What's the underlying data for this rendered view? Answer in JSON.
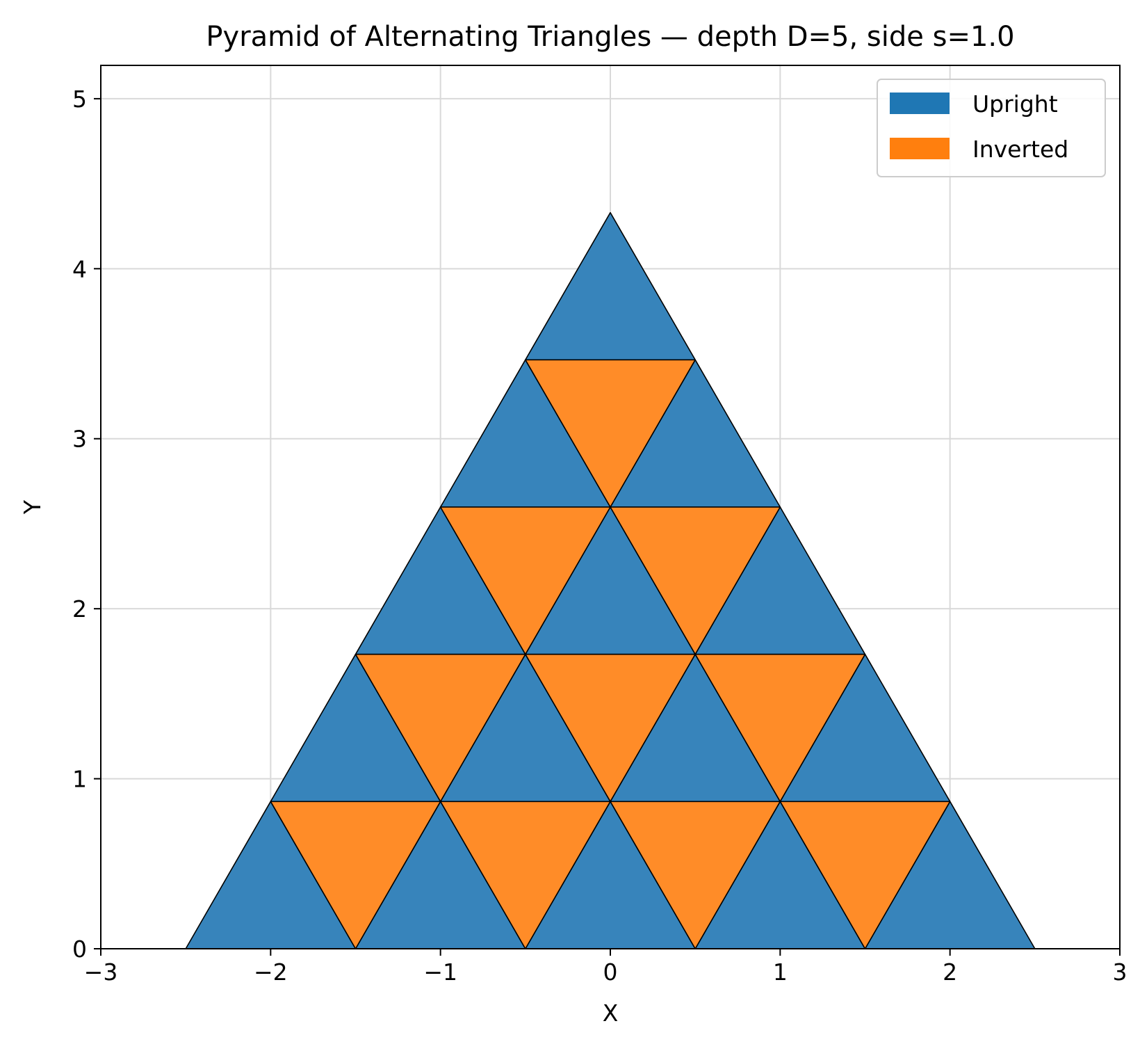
{
  "chart_data": {
    "type": "polygon",
    "title": "Pyramid of Alternating Triangles — depth D=5, side s=1.0",
    "xlabel": "X",
    "ylabel": "Y",
    "xlim": [
      -3,
      3
    ],
    "ylim": [
      0,
      5.196
    ],
    "xticks": [
      -3,
      -2,
      -1,
      0,
      1,
      2,
      3
    ],
    "yticks": [
      0,
      1,
      2,
      3,
      4,
      5
    ],
    "grid": true,
    "legend_position": "top-right",
    "depth": 5,
    "side": 1.0,
    "series": [
      {
        "name": "Upright",
        "color": "#1f77b4",
        "fill_color": "#3784bb",
        "triangles": [
          {
            "row": 0,
            "x0": -2.5,
            "y0": 0,
            "x1": -1.5,
            "y1": 0,
            "x2": -2.0,
            "y2": 0.866
          },
          {
            "row": 0,
            "x0": -1.5,
            "y0": 0,
            "x1": -0.5,
            "y1": 0,
            "x2": -1.0,
            "y2": 0.866
          },
          {
            "row": 0,
            "x0": -0.5,
            "y0": 0,
            "x1": 0.5,
            "y1": 0,
            "x2": 0.0,
            "y2": 0.866
          },
          {
            "row": 0,
            "x0": 0.5,
            "y0": 0,
            "x1": 1.5,
            "y1": 0,
            "x2": 1.0,
            "y2": 0.866
          },
          {
            "row": 0,
            "x0": 1.5,
            "y0": 0,
            "x1": 2.5,
            "y1": 0,
            "x2": 2.0,
            "y2": 0.866
          },
          {
            "row": 1,
            "x0": -2.0,
            "y0": 0.866,
            "x1": -1.0,
            "y1": 0.866,
            "x2": -1.5,
            "y2": 1.732
          },
          {
            "row": 1,
            "x0": -1.0,
            "y0": 0.866,
            "x1": 0.0,
            "y1": 0.866,
            "x2": -0.5,
            "y2": 1.732
          },
          {
            "row": 1,
            "x0": 0.0,
            "y0": 0.866,
            "x1": 1.0,
            "y1": 0.866,
            "x2": 0.5,
            "y2": 1.732
          },
          {
            "row": 1,
            "x0": 1.0,
            "y0": 0.866,
            "x1": 2.0,
            "y1": 0.866,
            "x2": 1.5,
            "y2": 1.732
          },
          {
            "row": 2,
            "x0": -1.5,
            "y0": 1.732,
            "x1": -0.5,
            "y1": 1.732,
            "x2": -1.0,
            "y2": 2.598
          },
          {
            "row": 2,
            "x0": -0.5,
            "y0": 1.732,
            "x1": 0.5,
            "y1": 1.732,
            "x2": 0.0,
            "y2": 2.598
          },
          {
            "row": 2,
            "x0": 0.5,
            "y0": 1.732,
            "x1": 1.5,
            "y1": 1.732,
            "x2": 1.0,
            "y2": 2.598
          },
          {
            "row": 3,
            "x0": -1.0,
            "y0": 2.598,
            "x1": 0.0,
            "y1": 2.598,
            "x2": -0.5,
            "y2": 3.464
          },
          {
            "row": 3,
            "x0": 0.0,
            "y0": 2.598,
            "x1": 1.0,
            "y1": 2.598,
            "x2": 0.5,
            "y2": 3.464
          },
          {
            "row": 4,
            "x0": -0.5,
            "y0": 3.464,
            "x1": 0.5,
            "y1": 3.464,
            "x2": 0.0,
            "y2": 4.33
          }
        ]
      },
      {
        "name": "Inverted",
        "color": "#ff7f0e",
        "fill_color": "#ff8c28",
        "triangles": [
          {
            "row": 0,
            "x0": -2.0,
            "y0": 0.866,
            "x1": -1.0,
            "y1": 0.866,
            "x2": -1.5,
            "y2": 0
          },
          {
            "row": 0,
            "x0": -1.0,
            "y0": 0.866,
            "x1": 0.0,
            "y1": 0.866,
            "x2": -0.5,
            "y2": 0
          },
          {
            "row": 0,
            "x0": 0.0,
            "y0": 0.866,
            "x1": 1.0,
            "y1": 0.866,
            "x2": 0.5,
            "y2": 0
          },
          {
            "row": 0,
            "x0": 1.0,
            "y0": 0.866,
            "x1": 2.0,
            "y1": 0.866,
            "x2": 1.5,
            "y2": 0
          },
          {
            "row": 1,
            "x0": -1.5,
            "y0": 1.732,
            "x1": -0.5,
            "y1": 1.732,
            "x2": -1.0,
            "y2": 0.866
          },
          {
            "row": 1,
            "x0": -0.5,
            "y0": 1.732,
            "x1": 0.5,
            "y1": 1.732,
            "x2": 0.0,
            "y2": 0.866
          },
          {
            "row": 1,
            "x0": 0.5,
            "y0": 1.732,
            "x1": 1.5,
            "y1": 1.732,
            "x2": 1.0,
            "y2": 0.866
          },
          {
            "row": 2,
            "x0": -1.0,
            "y0": 2.598,
            "x1": 0.0,
            "y1": 2.598,
            "x2": -0.5,
            "y2": 1.732
          },
          {
            "row": 2,
            "x0": 0.0,
            "y0": 2.598,
            "x1": 1.0,
            "y1": 2.598,
            "x2": 0.5,
            "y2": 1.732
          },
          {
            "row": 3,
            "x0": -0.5,
            "y0": 3.464,
            "x1": 0.5,
            "y1": 3.464,
            "x2": 0.0,
            "y2": 2.598
          }
        ]
      }
    ]
  }
}
